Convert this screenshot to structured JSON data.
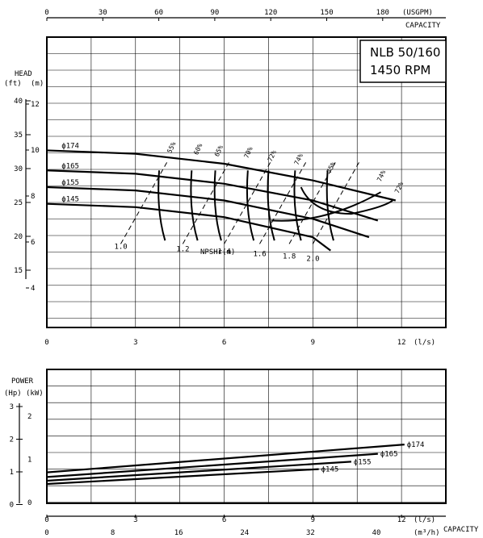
{
  "chart_data": [
    {
      "type": "line",
      "title": "NLB 50/160",
      "subtitle": "1450 RPM",
      "xlabel": "(l/s)",
      "ylabel_head": "HEAD",
      "y_units": {
        "ft": "(ft)",
        "m": "(m)"
      },
      "top_axis": {
        "label": "(USGPM)",
        "label2": "CAPACITY",
        "ticks": [
          "0",
          "30",
          "60",
          "90",
          "120",
          "150",
          "180"
        ]
      },
      "x_ticks": [
        "0",
        "3",
        "6",
        "9",
        "12"
      ],
      "x_range": [
        0,
        13.5
      ],
      "y_range_m": [
        0,
        13
      ],
      "ft_ticks": [
        "40",
        "35",
        "30",
        "25",
        "20",
        "15"
      ],
      "m_ticks": [
        "12",
        "10",
        "8",
        "6",
        "4"
      ],
      "grid": true,
      "series": [
        {
          "name": "ϕ174",
          "x": [
            0,
            3,
            6,
            9,
            11.8
          ],
          "y": [
            10.8,
            10.6,
            10.0,
            9.0,
            7.8
          ]
        },
        {
          "name": "ϕ165",
          "x": [
            0,
            3,
            6,
            9,
            11.2
          ],
          "y": [
            9.6,
            9.4,
            8.8,
            7.8,
            6.6
          ]
        },
        {
          "name": "ϕ155",
          "x": [
            0,
            3,
            6,
            9,
            10.9
          ],
          "y": [
            8.6,
            8.4,
            7.8,
            6.7,
            5.6
          ]
        },
        {
          "name": "ϕ145",
          "x": [
            0,
            3,
            6,
            9,
            9.6
          ],
          "y": [
            7.6,
            7.4,
            6.8,
            5.6,
            4.8
          ]
        }
      ],
      "efficiency_labels": [
        "55%",
        "60%",
        "65%",
        "70%",
        "72%",
        "74%",
        "75%",
        "74%",
        "72%"
      ],
      "npsh_labels": [
        "1.0",
        "1.2",
        "1.4",
        "1.6",
        "1.8",
        "2.0"
      ],
      "npsh_title": "NPSHr(m)"
    },
    {
      "type": "line",
      "ylabel": "POWER",
      "y_units": {
        "hp": "(Hp)",
        "kw": "(kW)"
      },
      "xlabel": "(l/s)",
      "x2label": "(m³/h)",
      "capacity_label": "CAPACITY",
      "x_ticks": [
        "0",
        "3",
        "6",
        "9",
        "12"
      ],
      "m3h_ticks": [
        "0",
        "8",
        "16",
        "24",
        "32",
        "40"
      ],
      "hp_ticks": [
        "3",
        "2",
        "1",
        "0"
      ],
      "kw_ticks": [
        "2",
        "1",
        "0"
      ],
      "y_range_kw": [
        0,
        2.75
      ],
      "grid": true,
      "series": [
        {
          "name": "ϕ174",
          "x": [
            0,
            12.1
          ],
          "y": [
            0.65,
            1.25
          ]
        },
        {
          "name": "ϕ165",
          "x": [
            0,
            11.2
          ],
          "y": [
            0.55,
            1.05
          ]
        },
        {
          "name": "ϕ155",
          "x": [
            0,
            10.3
          ],
          "y": [
            0.47,
            0.88
          ]
        },
        {
          "name": "ϕ145",
          "x": [
            0,
            9.2
          ],
          "y": [
            0.4,
            0.72
          ]
        }
      ]
    }
  ]
}
